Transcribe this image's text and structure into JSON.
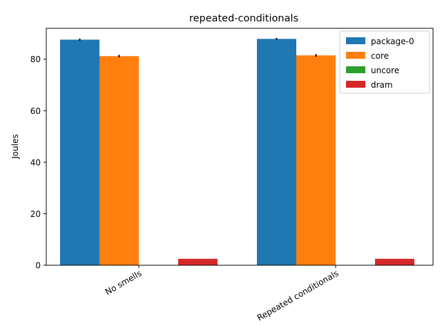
{
  "chart_data": {
    "type": "bar",
    "title": "repeated-conditionals",
    "xlabel": "",
    "ylabel": "Joules",
    "categories": [
      "No smells",
      "Repeated conditionals"
    ],
    "ylim": [
      0,
      92
    ],
    "yticks": [
      0,
      20,
      40,
      60,
      80
    ],
    "grid": false,
    "legend_position": "top-right",
    "series": [
      {
        "name": "package-0",
        "color": "#1f77b4",
        "values": [
          87.6,
          87.9
        ],
        "errors": [
          0.4,
          0.4
        ]
      },
      {
        "name": "core",
        "color": "#ff7f0e",
        "values": [
          81.2,
          81.5
        ],
        "errors": [
          0.5,
          0.5
        ]
      },
      {
        "name": "uncore",
        "color": "#2ca02c",
        "values": [
          0,
          0
        ],
        "errors": [
          0,
          0
        ]
      },
      {
        "name": "dram",
        "color": "#d62728",
        "values": [
          2.5,
          2.5
        ],
        "errors": [
          0,
          0
        ]
      }
    ]
  }
}
